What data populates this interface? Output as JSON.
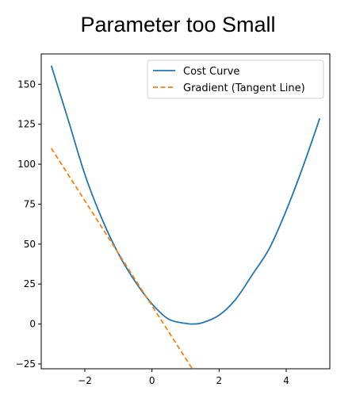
{
  "chart_data": {
    "type": "line",
    "title": "Parameter too Small",
    "xlabel": "",
    "ylabel": "",
    "xlim": [
      -3.3,
      5.3
    ],
    "ylim": [
      -28,
      169
    ],
    "grid": false,
    "legend_position": "top-right",
    "xticks": [
      "−2",
      "0",
      "2",
      "4"
    ],
    "xtick_values": [
      -2,
      0,
      2,
      4
    ],
    "yticks": [
      "−25",
      "0",
      "25",
      "50",
      "75",
      "100",
      "125",
      "150"
    ],
    "ytick_values": [
      -25,
      0,
      25,
      50,
      75,
      100,
      125,
      150
    ],
    "series": [
      {
        "name": "Cost Curve",
        "color": "#1f77b4",
        "style": "solid",
        "x": [
          -3.0,
          -2.5,
          -2.0,
          -1.5,
          -1.0,
          -0.5,
          0.0,
          0.5,
          1.0,
          1.2,
          1.5,
          2.0,
          2.5,
          3.0,
          3.5,
          4.0,
          4.5,
          5.0
        ],
        "y": [
          161.7,
          128.0,
          93.6,
          66.3,
          44.0,
          26.6,
          12.6,
          3.0,
          0.4,
          0.0,
          0.8,
          5.5,
          15.6,
          31.2,
          47.4,
          71.0,
          98.5,
          128.7
        ]
      },
      {
        "name": "Gradient (Tangent Line)",
        "color": "#ff7f0e",
        "style": "dashed",
        "x": [
          -3.0,
          1.2
        ],
        "y": [
          110.0,
          -28.0
        ]
      }
    ]
  }
}
